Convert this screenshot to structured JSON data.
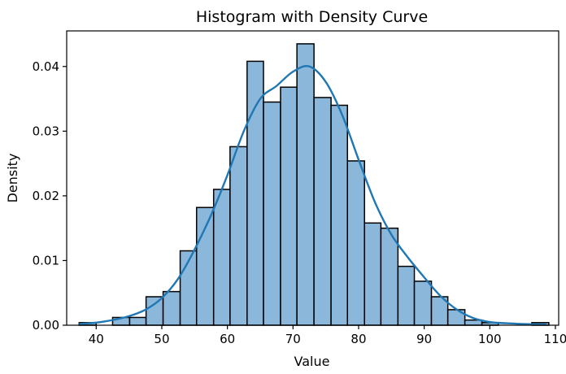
{
  "chart_data": {
    "type": "bar",
    "title": "Histogram with Density Curve",
    "xlabel": "Value",
    "ylabel": "Density",
    "xlim": [
      35.5,
      110.5
    ],
    "ylim": [
      0,
      0.0455
    ],
    "x_ticks": [
      40,
      50,
      60,
      70,
      80,
      90,
      100,
      110
    ],
    "y_ticks": [
      0.0,
      0.01,
      0.02,
      0.03,
      0.04
    ],
    "grid": false,
    "bar_color": "#8bb8da",
    "edge_color": "#000000",
    "curve_color": "#1f77b4",
    "bins": {
      "edges": [
        37.4,
        40.0,
        42.5,
        45.1,
        47.6,
        50.2,
        52.8,
        55.3,
        57.9,
        60.4,
        63.0,
        65.5,
        68.1,
        70.6,
        73.2,
        75.8,
        78.3,
        80.9,
        83.4,
        86.0,
        88.5,
        91.1,
        93.6,
        96.2,
        98.8,
        101.3,
        103.9,
        106.4,
        109.0
      ],
      "density": [
        0.0004,
        0.0,
        0.0012,
        0.0012,
        0.0044,
        0.0052,
        0.0115,
        0.0182,
        0.021,
        0.0276,
        0.0408,
        0.0345,
        0.0368,
        0.0435,
        0.0352,
        0.034,
        0.0254,
        0.0158,
        0.015,
        0.0091,
        0.0068,
        0.0044,
        0.0024,
        0.0008,
        0.0004,
        0.0,
        0.0,
        0.0004
      ]
    },
    "density_curve": {
      "x": [
        37.4,
        40,
        42.5,
        45,
        47.5,
        50,
        52.5,
        55,
        57.5,
        60,
        62.5,
        65,
        67.5,
        70,
        72.5,
        75,
        77.5,
        80,
        82.5,
        85,
        87.5,
        90,
        92.5,
        95,
        97.5,
        100,
        102.5,
        105,
        108.6
      ],
      "y": [
        0.0002,
        0.0004,
        0.0008,
        0.0014,
        0.0024,
        0.0042,
        0.0072,
        0.0117,
        0.017,
        0.0232,
        0.03,
        0.035,
        0.037,
        0.0392,
        0.04,
        0.0376,
        0.0325,
        0.0256,
        0.019,
        0.014,
        0.0105,
        0.0074,
        0.0045,
        0.0024,
        0.0011,
        0.0005,
        0.0003,
        0.0002,
        0.0001
      ]
    }
  }
}
